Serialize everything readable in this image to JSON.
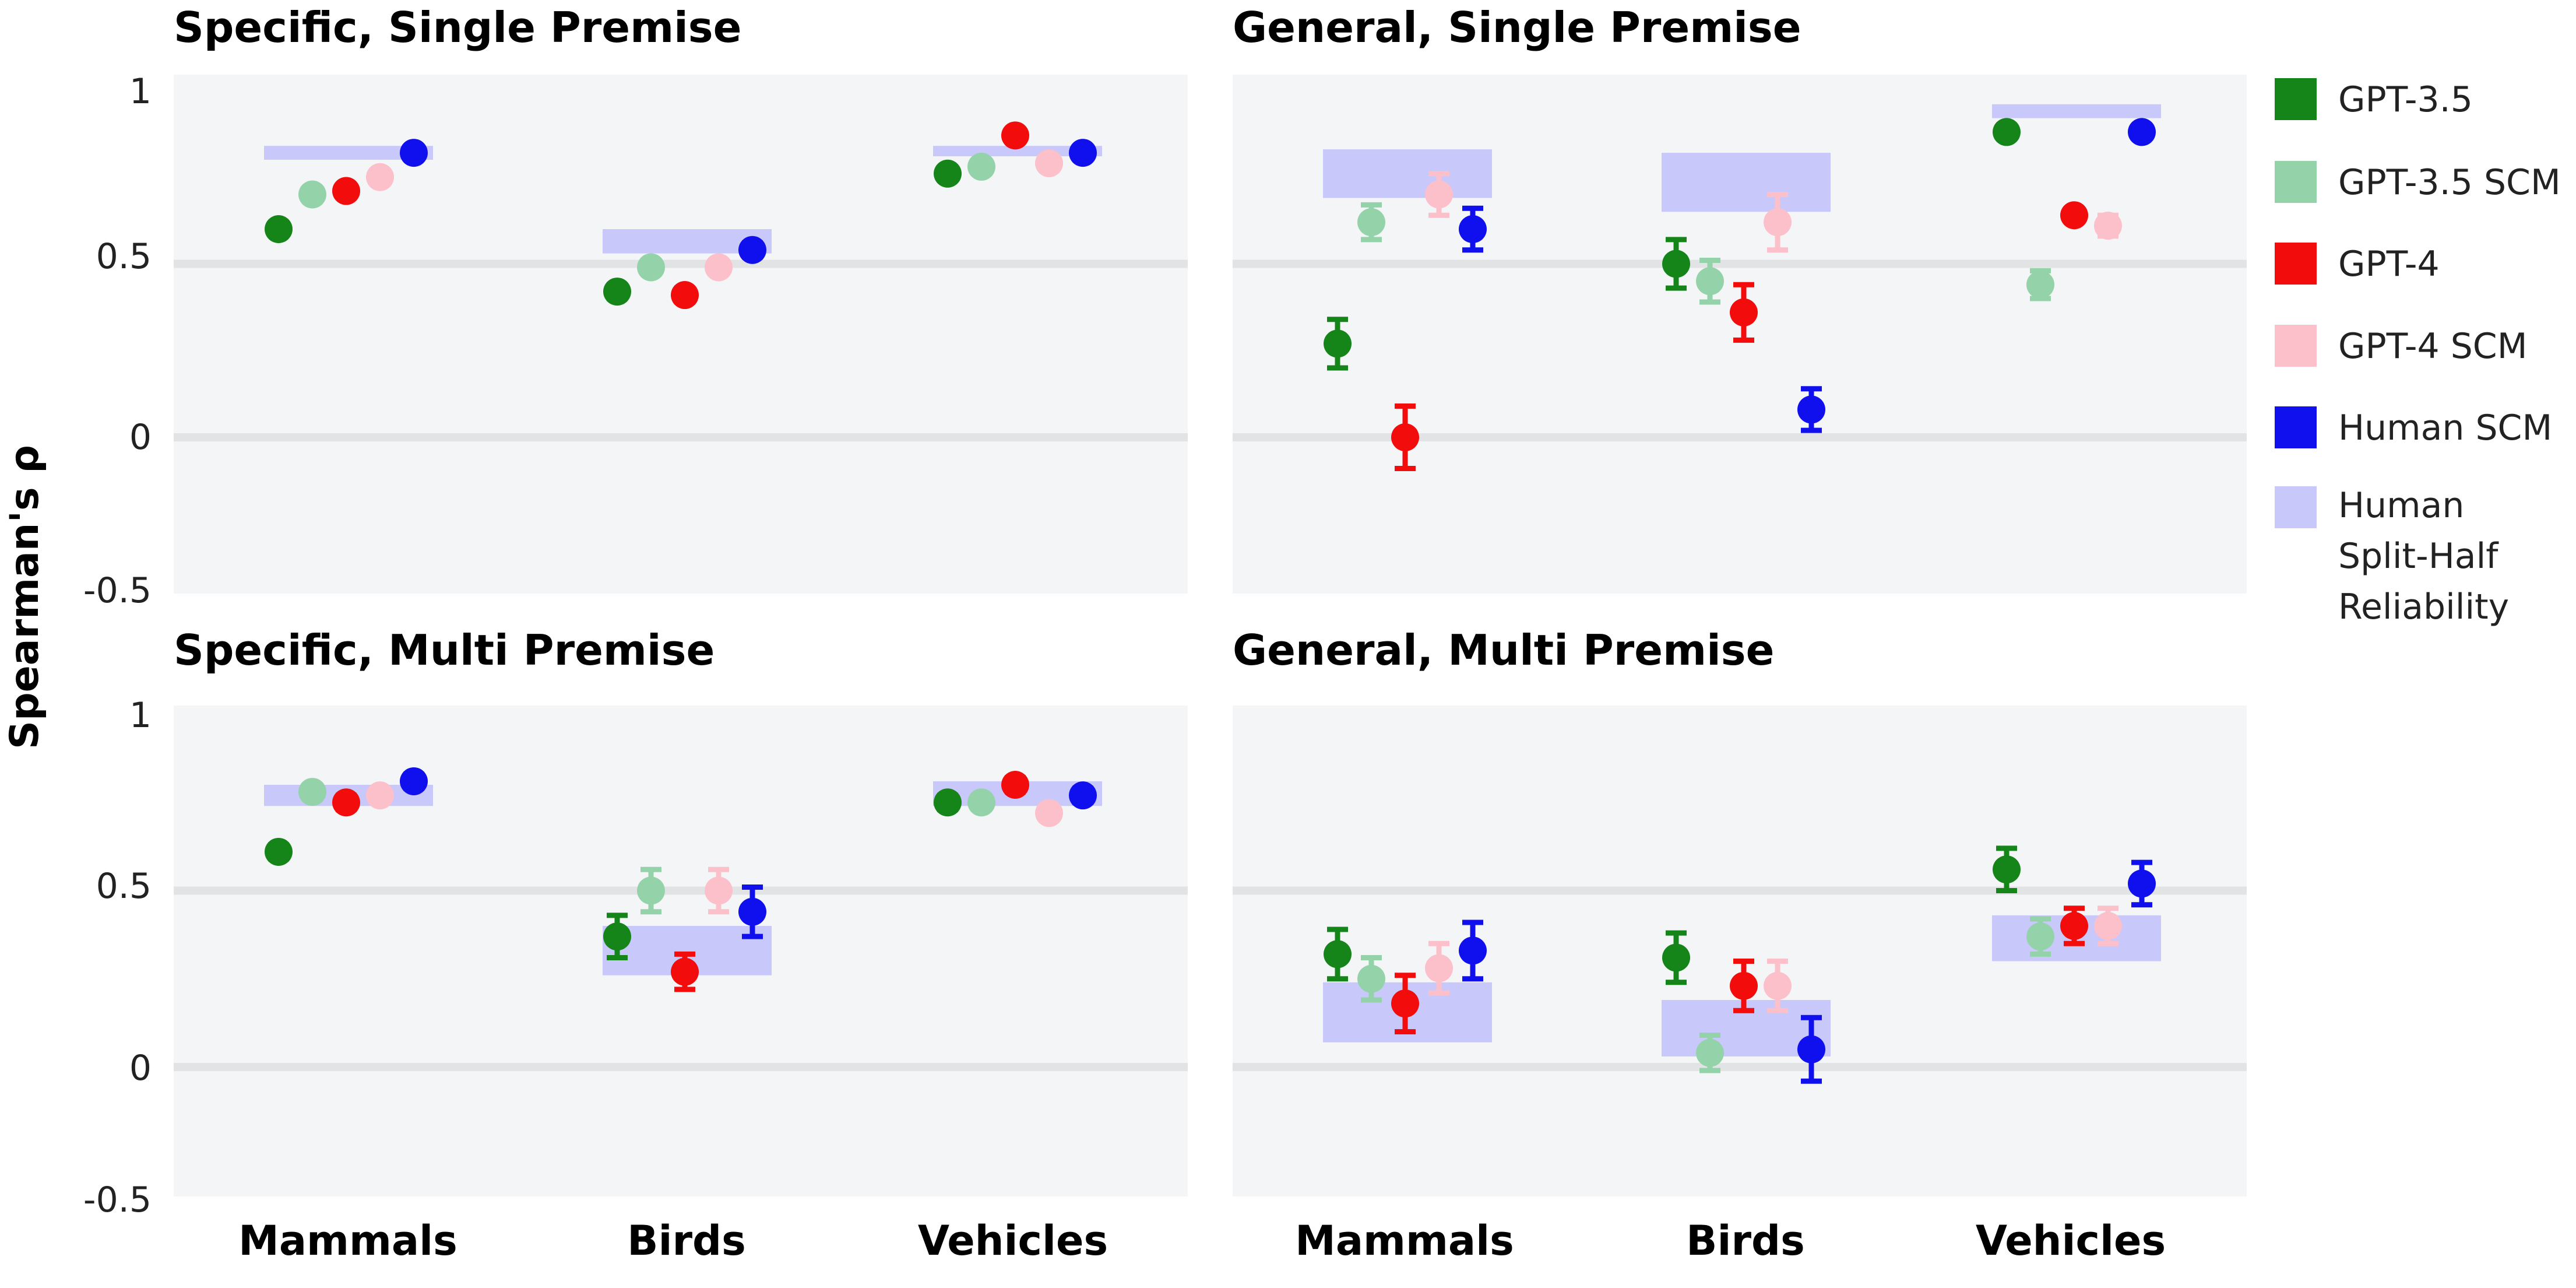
{
  "figure": {
    "ylabel": "Spearman's ρ",
    "yticks": [
      1,
      0.5,
      0,
      -0.5
    ],
    "ytick_labels": [
      "1",
      "0.5",
      "0",
      "-0.5"
    ],
    "categories": [
      "Mammals",
      "Birds",
      "Vehicles"
    ]
  },
  "legend": {
    "items": [
      {
        "label": "GPT-3.5",
        "color": "#15851a"
      },
      {
        "label": "GPT-3.5 SCM",
        "color": "#94d3aa"
      },
      {
        "label": "GPT-4",
        "color": "#f20c0c"
      },
      {
        "label": "GPT-4 SCM",
        "color": "#fcc0cb"
      },
      {
        "label": "Human SCM",
        "color": "#1010ee"
      },
      {
        "label": "Human Split-Half Reliability",
        "lines": [
          "Human",
          "Split-Half",
          "Reliability"
        ],
        "color": "#c8c8fa"
      }
    ]
  },
  "chart_data": [
    {
      "type": "scatter",
      "title": "Specific, Single Premise",
      "ylim": [
        -0.5,
        1.0
      ],
      "categories": [
        "Mammals",
        "Birds",
        "Vehicles"
      ],
      "series": [
        {
          "name": "GPT-3.5",
          "values": [
            0.6,
            0.42,
            0.76
          ],
          "err": [
            0.0,
            0.02,
            0.0
          ]
        },
        {
          "name": "GPT-3.5 SCM",
          "values": [
            0.7,
            0.49,
            0.78
          ],
          "err": [
            0.0,
            0.02,
            0.0
          ]
        },
        {
          "name": "GPT-4",
          "values": [
            0.71,
            0.41,
            0.87
          ],
          "err": [
            0.0,
            0.02,
            0.0
          ]
        },
        {
          "name": "GPT-4 SCM",
          "values": [
            0.75,
            0.49,
            0.79
          ],
          "err": [
            0.0,
            0.02,
            0.0
          ]
        },
        {
          "name": "Human SCM",
          "values": [
            0.82,
            0.54,
            0.82
          ],
          "err": [
            0.0,
            0.02,
            0.0
          ]
        }
      ],
      "reliability": [
        [
          0.8,
          0.84
        ],
        [
          0.53,
          0.6
        ],
        [
          0.81,
          0.84
        ]
      ]
    },
    {
      "type": "scatter",
      "title": "General, Single Premise",
      "ylim": [
        -0.5,
        1.0
      ],
      "categories": [
        "Mammals",
        "Birds",
        "Vehicles"
      ],
      "series": [
        {
          "name": "GPT-3.5",
          "values": [
            0.27,
            0.5,
            0.88
          ],
          "err": [
            0.07,
            0.07,
            0.0
          ]
        },
        {
          "name": "GPT-3.5 SCM",
          "values": [
            0.62,
            0.45,
            0.44
          ],
          "err": [
            0.05,
            0.06,
            0.04
          ]
        },
        {
          "name": "GPT-4",
          "values": [
            0.0,
            0.36,
            0.64
          ],
          "err": [
            0.09,
            0.08,
            0.0
          ]
        },
        {
          "name": "GPT-4 SCM",
          "values": [
            0.7,
            0.62,
            0.61
          ],
          "err": [
            0.06,
            0.08,
            0.03
          ]
        },
        {
          "name": "Human SCM",
          "values": [
            0.6,
            0.08,
            0.88
          ],
          "err": [
            0.06,
            0.06,
            0.0
          ]
        }
      ],
      "reliability": [
        [
          0.69,
          0.83
        ],
        [
          0.65,
          0.82
        ],
        [
          0.92,
          0.96
        ]
      ]
    },
    {
      "type": "scatter",
      "title": "Specific, Multi Premise",
      "ylim": [
        -0.5,
        1.0
      ],
      "categories": [
        "Mammals",
        "Birds",
        "Vehicles"
      ],
      "series": [
        {
          "name": "GPT-3.5",
          "values": [
            0.61,
            0.37,
            0.75
          ],
          "err": [
            0.02,
            0.06,
            0.02
          ]
        },
        {
          "name": "GPT-3.5 SCM",
          "values": [
            0.78,
            0.5,
            0.75
          ],
          "err": [
            0.02,
            0.06,
            0.02
          ]
        },
        {
          "name": "GPT-4",
          "values": [
            0.75,
            0.27,
            0.8
          ],
          "err": [
            0.02,
            0.05,
            0.02
          ]
        },
        {
          "name": "GPT-4 SCM",
          "values": [
            0.77,
            0.5,
            0.72
          ],
          "err": [
            0.02,
            0.06,
            0.02
          ]
        },
        {
          "name": "Human SCM",
          "values": [
            0.81,
            0.44,
            0.77
          ],
          "err": [
            0.02,
            0.07,
            0.02
          ]
        }
      ],
      "reliability": [
        [
          0.74,
          0.8
        ],
        [
          0.26,
          0.4
        ],
        [
          0.74,
          0.81
        ]
      ]
    },
    {
      "type": "scatter",
      "title": "General, Multi Premise",
      "ylim": [
        -0.5,
        1.0
      ],
      "categories": [
        "Mammals",
        "Birds",
        "Vehicles"
      ],
      "series": [
        {
          "name": "GPT-3.5",
          "values": [
            0.32,
            0.31,
            0.56
          ],
          "err": [
            0.07,
            0.07,
            0.06
          ]
        },
        {
          "name": "GPT-3.5 SCM",
          "values": [
            0.25,
            0.04,
            0.37
          ],
          "err": [
            0.06,
            0.05,
            0.05
          ]
        },
        {
          "name": "GPT-4",
          "values": [
            0.18,
            0.23,
            0.4
          ],
          "err": [
            0.08,
            0.07,
            0.05
          ]
        },
        {
          "name": "GPT-4 SCM",
          "values": [
            0.28,
            0.23,
            0.4
          ],
          "err": [
            0.07,
            0.07,
            0.05
          ]
        },
        {
          "name": "Human SCM",
          "values": [
            0.33,
            0.05,
            0.52
          ],
          "err": [
            0.08,
            0.09,
            0.06
          ]
        }
      ],
      "reliability": [
        [
          0.07,
          0.24
        ],
        [
          0.03,
          0.19
        ],
        [
          0.3,
          0.43
        ]
      ]
    }
  ]
}
